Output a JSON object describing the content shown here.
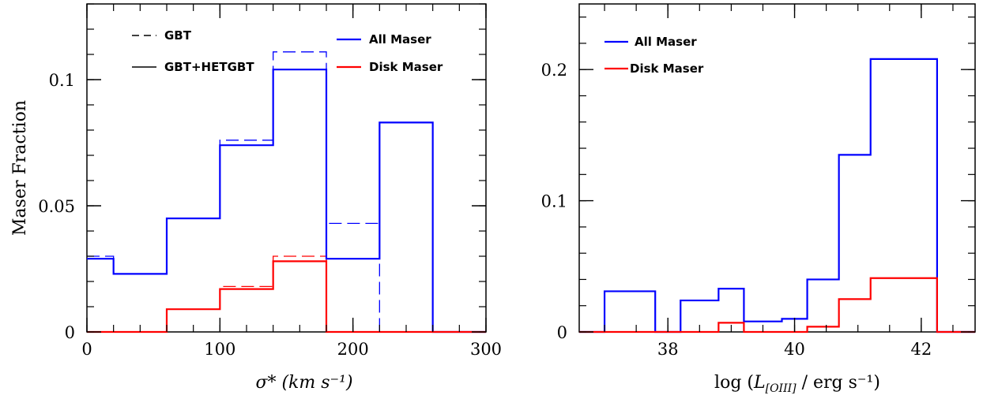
{
  "chart_data": [
    {
      "type": "histogram",
      "xlabel": "σ* (km s⁻¹)",
      "ylabel": "Maser Fraction",
      "xlim": [
        0,
        300
      ],
      "ylim": [
        0,
        0.13
      ],
      "xticks": [
        0,
        100,
        200,
        300
      ],
      "xtick_labels": [
        "0",
        "100",
        "200",
        "300"
      ],
      "yticks": [
        0,
        0.05,
        0.1
      ],
      "ytick_labels": [
        "0",
        "0.05",
        "0.1"
      ],
      "bin_edges": [
        0,
        20,
        60,
        100,
        140,
        180,
        220,
        260,
        300
      ],
      "series": [
        {
          "name": "All Maser",
          "style": "GBT+HETGBT",
          "color": "#0000ff",
          "dashed": false,
          "values": [
            0.029,
            0.023,
            0.045,
            0.074,
            0.104,
            0.029,
            0.083,
            0.0
          ]
        },
        {
          "name": "All Maser",
          "style": "GBT",
          "color": "#0000ff",
          "dashed": true,
          "values": [
            0.03,
            0.023,
            0.045,
            0.076,
            0.111,
            0.043,
            0.0,
            0.0
          ]
        },
        {
          "name": "Disk Maser",
          "style": "GBT+HETGBT",
          "color": "#ff0000",
          "dashed": false,
          "values": [
            0.0,
            0.0,
            0.009,
            0.017,
            0.028,
            0.0,
            0.0,
            0.0
          ]
        },
        {
          "name": "Disk Maser",
          "style": "GBT",
          "color": "#ff0000",
          "dashed": true,
          "values": [
            0.0,
            0.0,
            0.009,
            0.018,
            0.03,
            0.0,
            0.0,
            0.0
          ]
        }
      ],
      "legend_styles": [
        {
          "label": "GBT",
          "dashed": true
        },
        {
          "label": "GBT+HETGBT",
          "dashed": false
        }
      ],
      "legend_colors": [
        {
          "label": "All Maser",
          "color": "#0000ff"
        },
        {
          "label": "Disk Maser",
          "color": "#ff0000"
        }
      ],
      "legend_placement": "top"
    },
    {
      "type": "histogram",
      "xlabel_prefix": "log (",
      "xlabel_symbol": "L",
      "xlabel_subscript": "[OIII]",
      "xlabel_suffix": " / erg s⁻¹)",
      "ylabel": "",
      "xlim": [
        36.6,
        42.85
      ],
      "ylim": [
        0,
        0.25
      ],
      "xticks": [
        38,
        40,
        42
      ],
      "xtick_labels": [
        "38",
        "40",
        "42"
      ],
      "yticks": [
        0,
        0.1,
        0.2
      ],
      "ytick_labels": [
        "0",
        "0.1",
        "0.2"
      ],
      "bin_edges": [
        36.6,
        37.0,
        37.8,
        38.2,
        38.8,
        39.2,
        39.8,
        40.2,
        40.7,
        41.2,
        42.25,
        42.85
      ],
      "series": [
        {
          "name": "All Maser",
          "color": "#0000ff",
          "dashed": false,
          "values": [
            0.0,
            0.031,
            0.0,
            0.024,
            0.033,
            0.008,
            0.01,
            0.04,
            0.135,
            0.208,
            0.0
          ]
        },
        {
          "name": "Disk Maser",
          "color": "#ff0000",
          "dashed": false,
          "values": [
            0.0,
            0.0,
            0.0,
            0.0,
            0.007,
            0.0,
            0.0,
            0.004,
            0.025,
            0.041,
            0.0
          ]
        }
      ],
      "legend_colors": [
        {
          "label": "All Maser",
          "color": "#0000ff"
        },
        {
          "label": "Disk Maser",
          "color": "#ff0000"
        }
      ],
      "legend_placement": "top-left"
    }
  ]
}
